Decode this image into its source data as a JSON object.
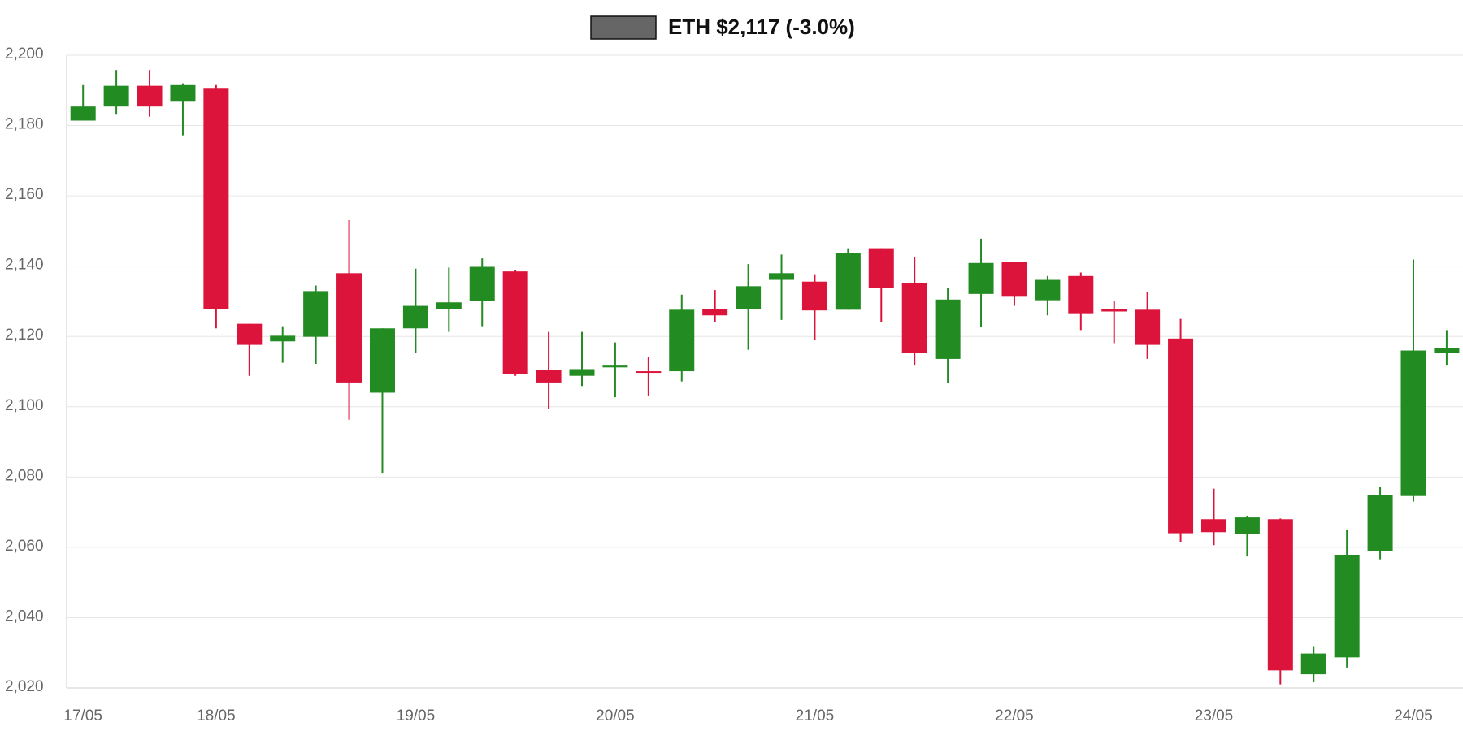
{
  "chart_data": {
    "type": "candlestick",
    "title": "ETH $2,117 (-3.0%)",
    "legend_color": "#666666",
    "up_color": "#228b22",
    "down_color": "#dc143c",
    "grid": true,
    "categories": [
      "17/05",
      null,
      null,
      null,
      "18/05",
      null,
      null,
      null,
      null,
      null,
      "19/05",
      null,
      null,
      null,
      null,
      null,
      "20/05",
      null,
      null,
      null,
      null,
      null,
      "21/05",
      null,
      null,
      null,
      null,
      null,
      "22/05",
      null,
      null,
      null,
      null,
      null,
      "23/05",
      null,
      null,
      null,
      null,
      null,
      "24/05",
      null
    ],
    "open": [
      2181.4,
      2185.4,
      2191.3,
      2187.0,
      2190.7,
      2123.6,
      2118.6,
      2119.9,
      2138.0,
      2104.0,
      2122.3,
      2127.9,
      2130.0,
      2138.5,
      2110.4,
      2108.8,
      2111.2,
      2110.1,
      2110.1,
      2127.9,
      2127.9,
      2136.1,
      2135.6,
      2127.6,
      2145.1,
      2135.3,
      2113.6,
      2132.1,
      2141.1,
      2130.3,
      2137.2,
      2127.9,
      2127.6,
      2119.4,
      2068.0,
      2063.7,
      2068.0,
      2023.9,
      2028.7,
      2059.0,
      2074.6,
      2115.4
    ],
    "high": [
      2191.5,
      2195.8,
      2195.8,
      2192.0,
      2191.5,
      2123.6,
      2122.9,
      2134.5,
      2153.1,
      2122.3,
      2139.3,
      2139.6,
      2142.2,
      2138.8,
      2121.3,
      2121.3,
      2118.3,
      2114.1,
      2131.9,
      2133.2,
      2140.6,
      2143.3,
      2137.7,
      2145.1,
      2145.1,
      2142.7,
      2133.7,
      2147.8,
      2141.1,
      2137.2,
      2138.2,
      2130.0,
      2132.7,
      2125.0,
      2076.7,
      2069.0,
      2068.2,
      2031.9,
      2065.1,
      2077.3,
      2141.9,
      2121.8
    ],
    "low": [
      2181.4,
      2183.3,
      2182.5,
      2177.2,
      2122.3,
      2108.8,
      2112.5,
      2112.2,
      2096.3,
      2081.2,
      2115.4,
      2121.3,
      2122.9,
      2108.8,
      2099.5,
      2105.9,
      2102.7,
      2103.2,
      2107.2,
      2124.2,
      2116.2,
      2124.7,
      2119.1,
      2127.6,
      2124.2,
      2111.7,
      2106.7,
      2122.6,
      2128.7,
      2126.0,
      2121.8,
      2118.1,
      2113.6,
      2061.6,
      2060.6,
      2057.4,
      2021.0,
      2021.6,
      2025.8,
      2056.6,
      2073.0,
      2111.7
    ],
    "close": [
      2185.4,
      2191.3,
      2185.4,
      2191.5,
      2127.9,
      2117.6,
      2120.2,
      2132.9,
      2106.9,
      2122.3,
      2128.7,
      2129.7,
      2139.8,
      2109.3,
      2106.9,
      2110.7,
      2111.7,
      2109.8,
      2127.6,
      2126.0,
      2134.3,
      2138.0,
      2127.4,
      2143.8,
      2133.7,
      2115.2,
      2130.5,
      2140.9,
      2131.3,
      2136.1,
      2126.6,
      2127.1,
      2117.6,
      2064.0,
      2064.3,
      2068.5,
      2025.0,
      2029.8,
      2057.9,
      2074.9,
      2116.0,
      2116.8
    ],
    "ylim": [
      2020,
      2200
    ],
    "yticks": [
      {
        "value": 2020,
        "label": "2,020"
      },
      {
        "value": 2040,
        "label": "2,040"
      },
      {
        "value": 2060,
        "label": "2,060"
      },
      {
        "value": 2080,
        "label": "2,080"
      },
      {
        "value": 2100,
        "label": "2,100"
      },
      {
        "value": 2120,
        "label": "2,120"
      },
      {
        "value": 2140,
        "label": "2,140"
      },
      {
        "value": 2160,
        "label": "2,160"
      },
      {
        "value": 2180,
        "label": "2,180"
      },
      {
        "value": 2200,
        "label": "2,200"
      }
    ]
  }
}
